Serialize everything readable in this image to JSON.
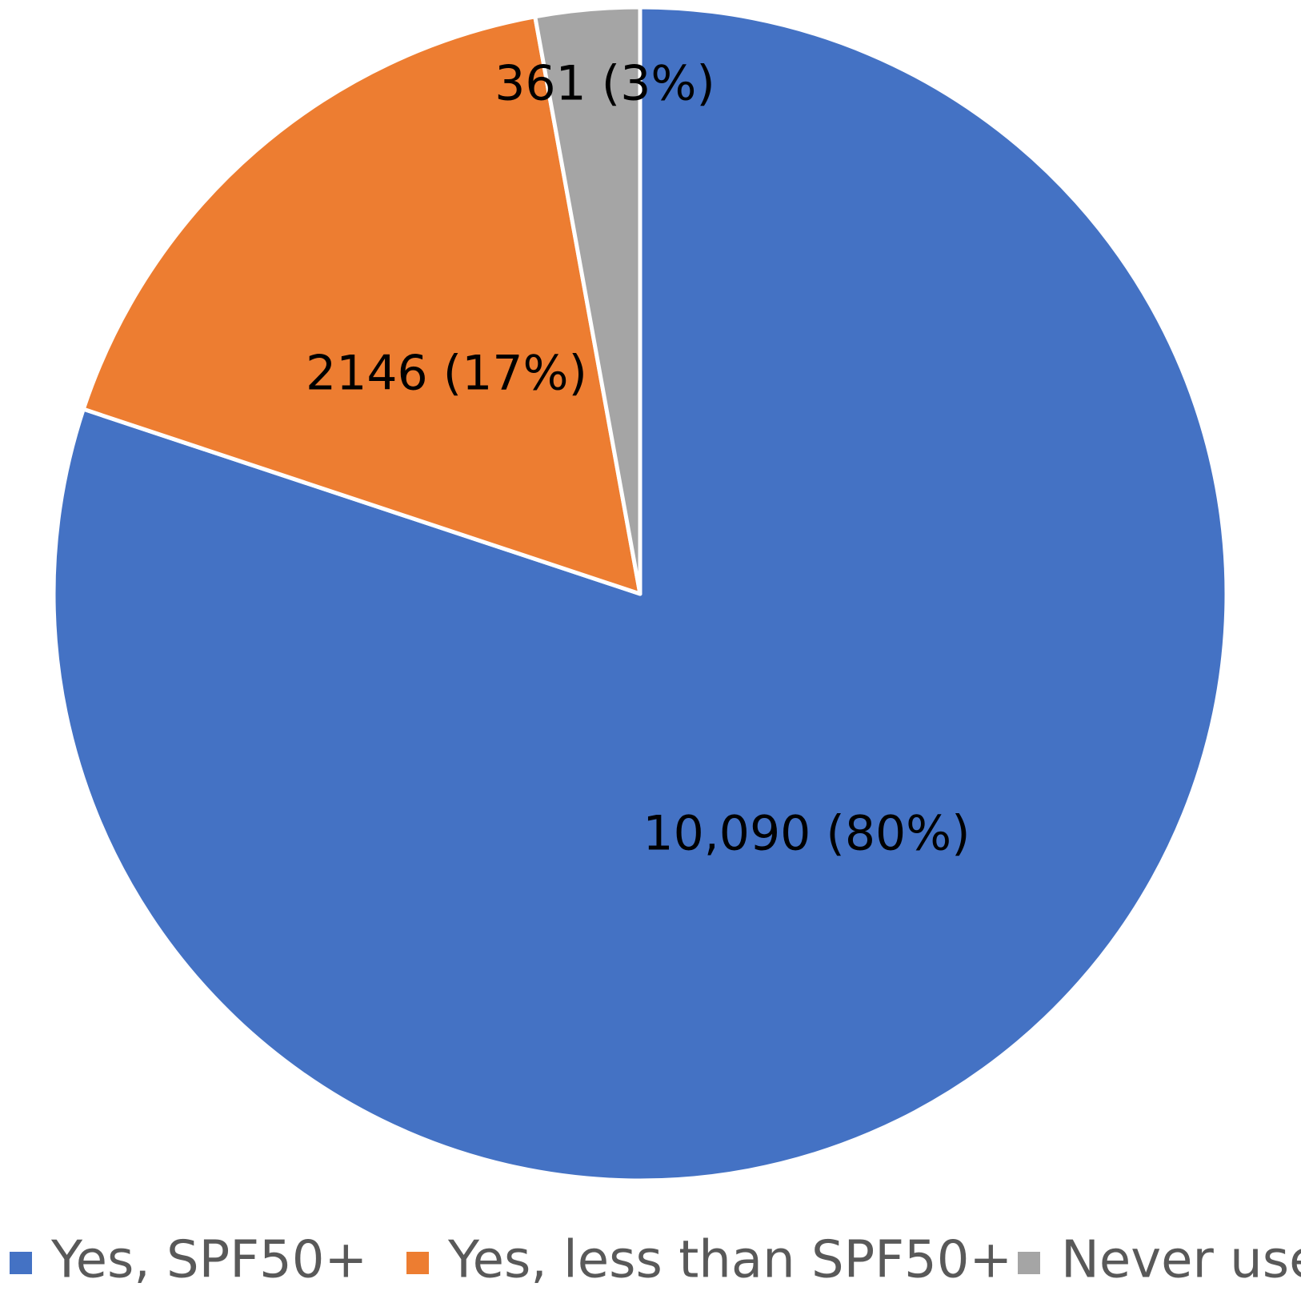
{
  "chart_data": {
    "type": "pie",
    "title": "",
    "start_angle_deg": 0,
    "direction": "clockwise",
    "legend_position": "bottom",
    "slices": [
      {
        "name": "Yes, SPF50+",
        "value": 10090,
        "label": "10,090 (80%)",
        "color": "#4472C4"
      },
      {
        "name": "Yes, less than SPF50+",
        "value": 2146,
        "label": "2146 (17%)",
        "color": "#ED7D31"
      },
      {
        "name": "Never use",
        "value": 361,
        "label": "361 (3%)",
        "color": "#A5A5A5"
      }
    ]
  }
}
